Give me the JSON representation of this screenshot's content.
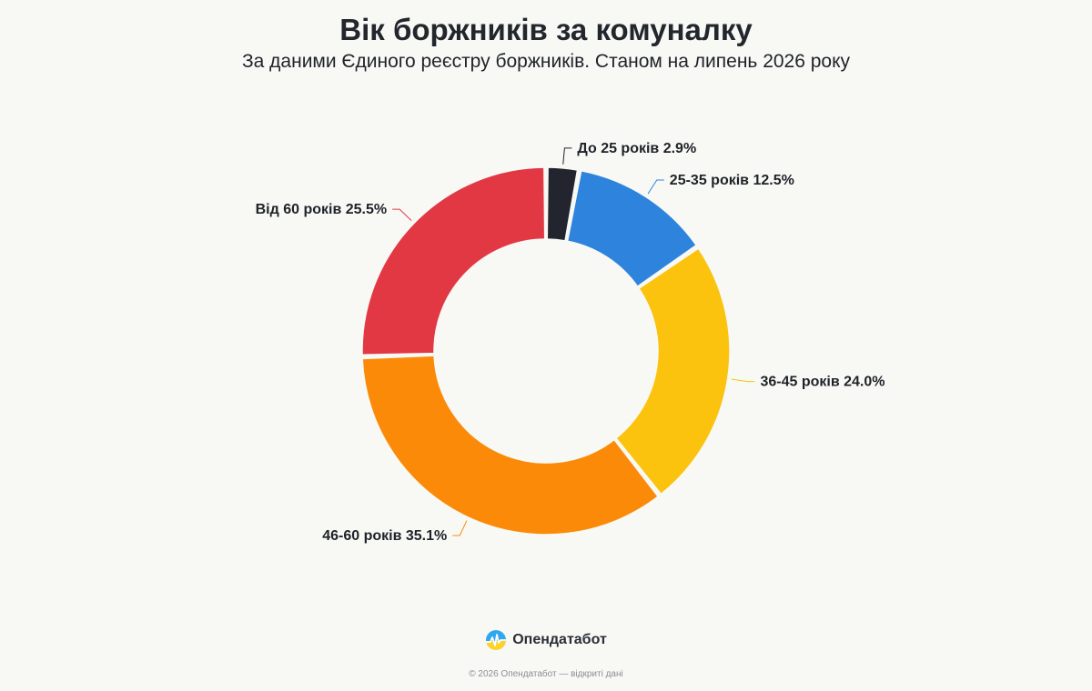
{
  "header": {
    "title": "Вік боржників за комуналку",
    "subtitle": "За даними Єдиного реєстру боржників. Станом на липень 2026 року"
  },
  "chart_data": {
    "type": "pie",
    "title": "Вік боржників за комуналку",
    "subtitle": "За даними Єдиного реєстру боржників. Станом на липень 2026 року",
    "donut": true,
    "unit": "%",
    "slices": [
      {
        "label": "До 25 років",
        "value": 2.9,
        "color": "#22252e"
      },
      {
        "label": "25-35 років",
        "value": 12.5,
        "color": "#2e84dc"
      },
      {
        "label": "36-45 років",
        "value": 24.0,
        "color": "#fbc30d"
      },
      {
        "label": "46-60 років",
        "value": 35.1,
        "color": "#fb8a09"
      },
      {
        "label": "Від 60 років",
        "value": 25.5,
        "color": "#e23844"
      }
    ]
  },
  "brand": {
    "name": "Опендатабот",
    "icon": "opendatabot-logo-icon"
  },
  "footer": {
    "text": "© 2026 Опендатабот — відкриті дані"
  }
}
